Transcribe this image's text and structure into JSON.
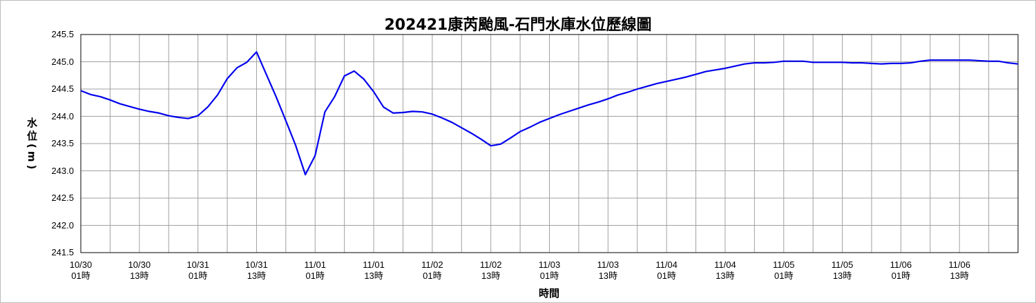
{
  "chart_data": {
    "type": "line",
    "title": "202421康芮颱風-石門水庫水位歷線圖",
    "y_label": "水位(m)",
    "x_label": "時間",
    "categories": [
      "10/30\n01時",
      null,
      null,
      null,
      null,
      null,
      "10/30\n13時",
      null,
      null,
      null,
      null,
      null,
      "10/31\n01時",
      null,
      null,
      null,
      null,
      null,
      "10/31\n13時",
      null,
      null,
      null,
      null,
      null,
      "11/01\n01時",
      null,
      null,
      null,
      null,
      null,
      "11/01\n13時",
      null,
      null,
      null,
      null,
      null,
      "11/02\n01時",
      null,
      null,
      null,
      null,
      null,
      "11/02\n13時",
      null,
      null,
      null,
      null,
      null,
      "11/03\n01時",
      null,
      null,
      null,
      null,
      null,
      "11/03\n13時",
      null,
      null,
      null,
      null,
      null,
      "11/04\n01時",
      null,
      null,
      null,
      null,
      null,
      "11/04\n13時",
      null,
      null,
      null,
      null,
      null,
      "11/05\n01時",
      null,
      null,
      null,
      null,
      null,
      "11/05\n13時",
      null,
      null,
      null,
      null,
      null,
      "11/06\n01時",
      null,
      null,
      null,
      null,
      null,
      "11/06\n13時",
      null,
      null,
      null,
      null,
      null,
      null
    ],
    "series": [
      {
        "color": "#0000ee",
        "values": [
          244.47,
          244.4,
          244.36,
          244.3,
          244.23,
          244.18,
          244.13,
          244.09,
          244.06,
          244.01,
          243.98,
          243.96,
          244.01,
          244.17,
          244.39,
          244.69,
          244.89,
          244.99,
          245.18,
          244.77,
          244.36,
          243.92,
          243.47,
          242.93,
          243.28,
          244.08,
          244.36,
          244.74,
          244.83,
          244.68,
          244.45,
          244.17,
          244.06,
          244.07,
          244.09,
          244.08,
          244.04,
          243.97,
          243.89,
          243.79,
          243.69,
          243.58,
          243.46,
          243.49,
          243.6,
          243.72,
          243.8,
          243.89,
          243.96,
          244.03,
          244.09,
          244.15,
          244.21,
          244.26,
          244.32,
          244.39,
          244.44,
          244.5,
          244.55,
          244.6,
          244.64,
          244.68,
          244.72,
          244.77,
          244.82,
          244.85,
          244.88,
          244.92,
          244.96,
          244.98,
          244.98,
          244.99,
          245.01,
          245.01,
          245.01,
          244.99,
          244.99,
          244.99,
          244.99,
          244.98,
          244.98,
          244.97,
          244.96,
          244.97,
          244.97,
          244.98,
          245.01,
          245.03,
          245.03,
          245.03,
          245.03,
          245.03,
          245.02,
          245.01,
          245.01,
          244.98,
          244.96
        ]
      }
    ],
    "ylim": [
      241.5,
      245.5
    ],
    "yticks": [
      241.5,
      {
        "value": 242,
        "label": "242.0"
      },
      242.5,
      {
        "value": 243,
        "label": "243.0"
      },
      243.5,
      {
        "value": 244,
        "label": "244.0"
      },
      244.5,
      {
        "value": 245,
        "label": "245.0"
      },
      245.5
    ],
    "grid": true,
    "x_grid_every": 3
  }
}
